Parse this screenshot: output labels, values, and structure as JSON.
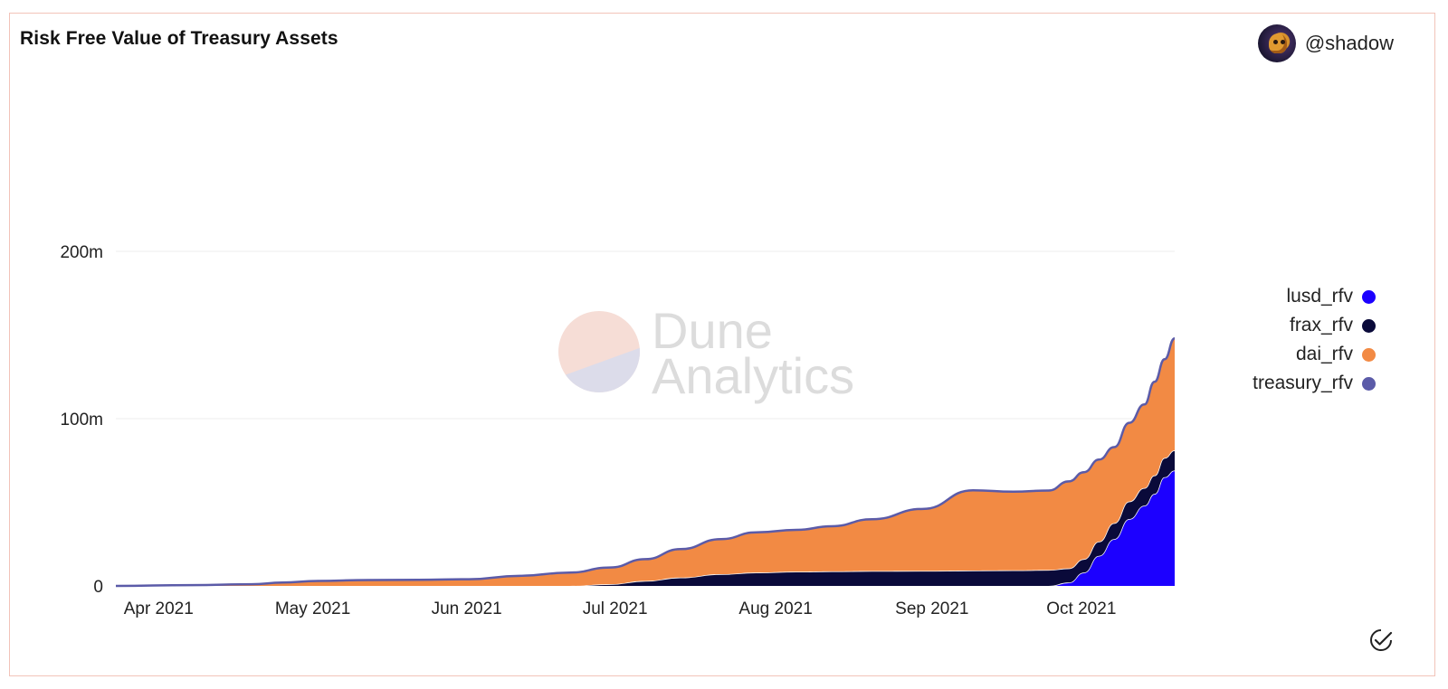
{
  "header": {
    "title": "Risk Free Value of Treasury Assets",
    "author": "@shadow"
  },
  "watermark": {
    "line1": "Dune",
    "line2": "Analytics"
  },
  "legend": [
    {
      "label": "lusd_rfv",
      "color": "#1c00ff"
    },
    {
      "label": "frax_rfv",
      "color": "#0a0a3a"
    },
    {
      "label": "dai_rfv",
      "color": "#f28a44"
    },
    {
      "label": "treasury_rfv",
      "color": "#5b5ba8"
    }
  ],
  "chart_data": {
    "type": "area",
    "stacked": true,
    "title": "Risk Free Value of Treasury Assets",
    "xlabel": "",
    "ylabel": "",
    "ylim": [
      0,
      200
    ],
    "yticks": [
      0,
      100,
      200
    ],
    "ytick_labels": [
      "0",
      "100m",
      "200m"
    ],
    "xlim": [
      0,
      210
    ],
    "xticks": [
      {
        "day": 10,
        "label": "Apr 2021"
      },
      {
        "day": 40,
        "label": "May 2021"
      },
      {
        "day": 71,
        "label": "Jun 2021"
      },
      {
        "day": 101,
        "label": "Jul 2021"
      },
      {
        "day": 132,
        "label": "Aug 2021"
      },
      {
        "day": 163,
        "label": "Sep 2021"
      },
      {
        "day": 193,
        "label": "Oct 2021"
      }
    ],
    "x_unit": "days since 2021-03-22",
    "x": [
      0,
      15,
      27,
      33,
      40,
      50,
      60,
      70,
      80,
      90,
      98,
      105,
      112,
      120,
      127,
      135,
      142,
      150,
      160,
      170,
      178,
      185,
      189,
      192,
      195,
      198,
      201,
      204,
      206,
      208,
      210
    ],
    "series": [
      {
        "name": "lusd_rfv",
        "values": [
          0,
          0,
          0,
          0,
          0,
          0,
          0,
          0,
          0,
          0,
          0,
          0,
          0,
          0,
          0,
          0,
          0,
          0,
          0,
          0,
          0,
          0,
          2,
          8,
          18,
          28,
          40,
          48,
          55,
          65,
          69
        ]
      },
      {
        "name": "frax_rfv",
        "values": [
          0,
          0,
          0,
          0,
          0,
          0,
          0,
          0,
          0,
          0,
          1,
          3,
          5,
          7,
          8,
          8.5,
          8.7,
          8.9,
          9,
          9.2,
          9.3,
          9.5,
          8.5,
          8,
          8.5,
          9.5,
          10.5,
          10.5,
          11,
          11.5,
          12
        ]
      },
      {
        "name": "dai_rfv",
        "values": [
          0,
          0.5,
          1,
          2,
          3,
          3.5,
          3.7,
          4,
          6,
          8,
          10,
          13,
          17,
          21,
          24,
          25,
          27,
          31,
          37,
          48,
          47,
          47.5,
          52,
          52,
          49,
          45.5,
          47,
          50,
          56,
          59,
          67
        ]
      }
    ],
    "total_series": {
      "name": "treasury_rfv",
      "values": [
        0,
        0.5,
        1,
        2,
        3,
        3.5,
        3.7,
        4,
        6,
        8,
        11,
        16,
        22,
        28,
        32,
        33.5,
        35.7,
        39.9,
        46,
        57.2,
        56.3,
        57,
        62.5,
        68,
        75.5,
        83,
        97.5,
        108.5,
        122,
        135.5,
        148
      ]
    }
  }
}
